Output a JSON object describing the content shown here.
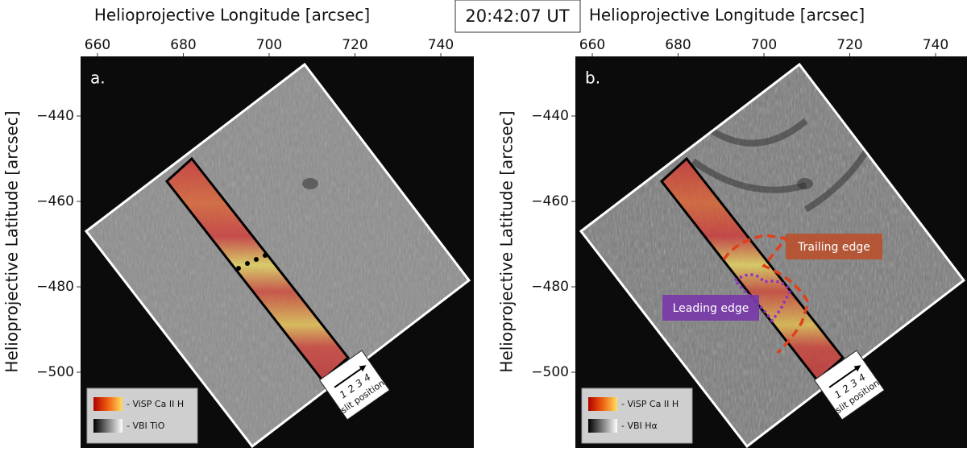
{
  "time_label": "20:42:07 UT",
  "panels": [
    {
      "label": "a.",
      "x_axis_title": "Helioprojective Longitude [arcsec]",
      "y_axis_title": "Helioprojective Latitude [arcsec]",
      "xticks": [
        "660",
        "680",
        "700",
        "720",
        "740"
      ],
      "yticks": [
        "−440",
        "−460",
        "−480",
        "−500"
      ],
      "legend": [
        "- ViSP Ca II H",
        "- VBI TiO"
      ],
      "slit_numbers": [
        "1",
        "2",
        "3",
        "4"
      ],
      "slit_caption": "slit position"
    },
    {
      "label": "b.",
      "x_axis_title": "Helioprojective Longitude [arcsec]",
      "y_axis_title": "Helioprojective Latitude [arcsec]",
      "xticks": [
        "660",
        "680",
        "700",
        "720",
        "740"
      ],
      "yticks": [
        "−440",
        "−460",
        "−480",
        "−500"
      ],
      "legend": [
        "- ViSP Ca II H",
        "- VBI Hα"
      ],
      "slit_numbers": [
        "1",
        "2",
        "3",
        "4"
      ],
      "slit_caption": "slit position",
      "annotations": [
        "Trailing edge",
        "Leading edge"
      ]
    }
  ]
}
